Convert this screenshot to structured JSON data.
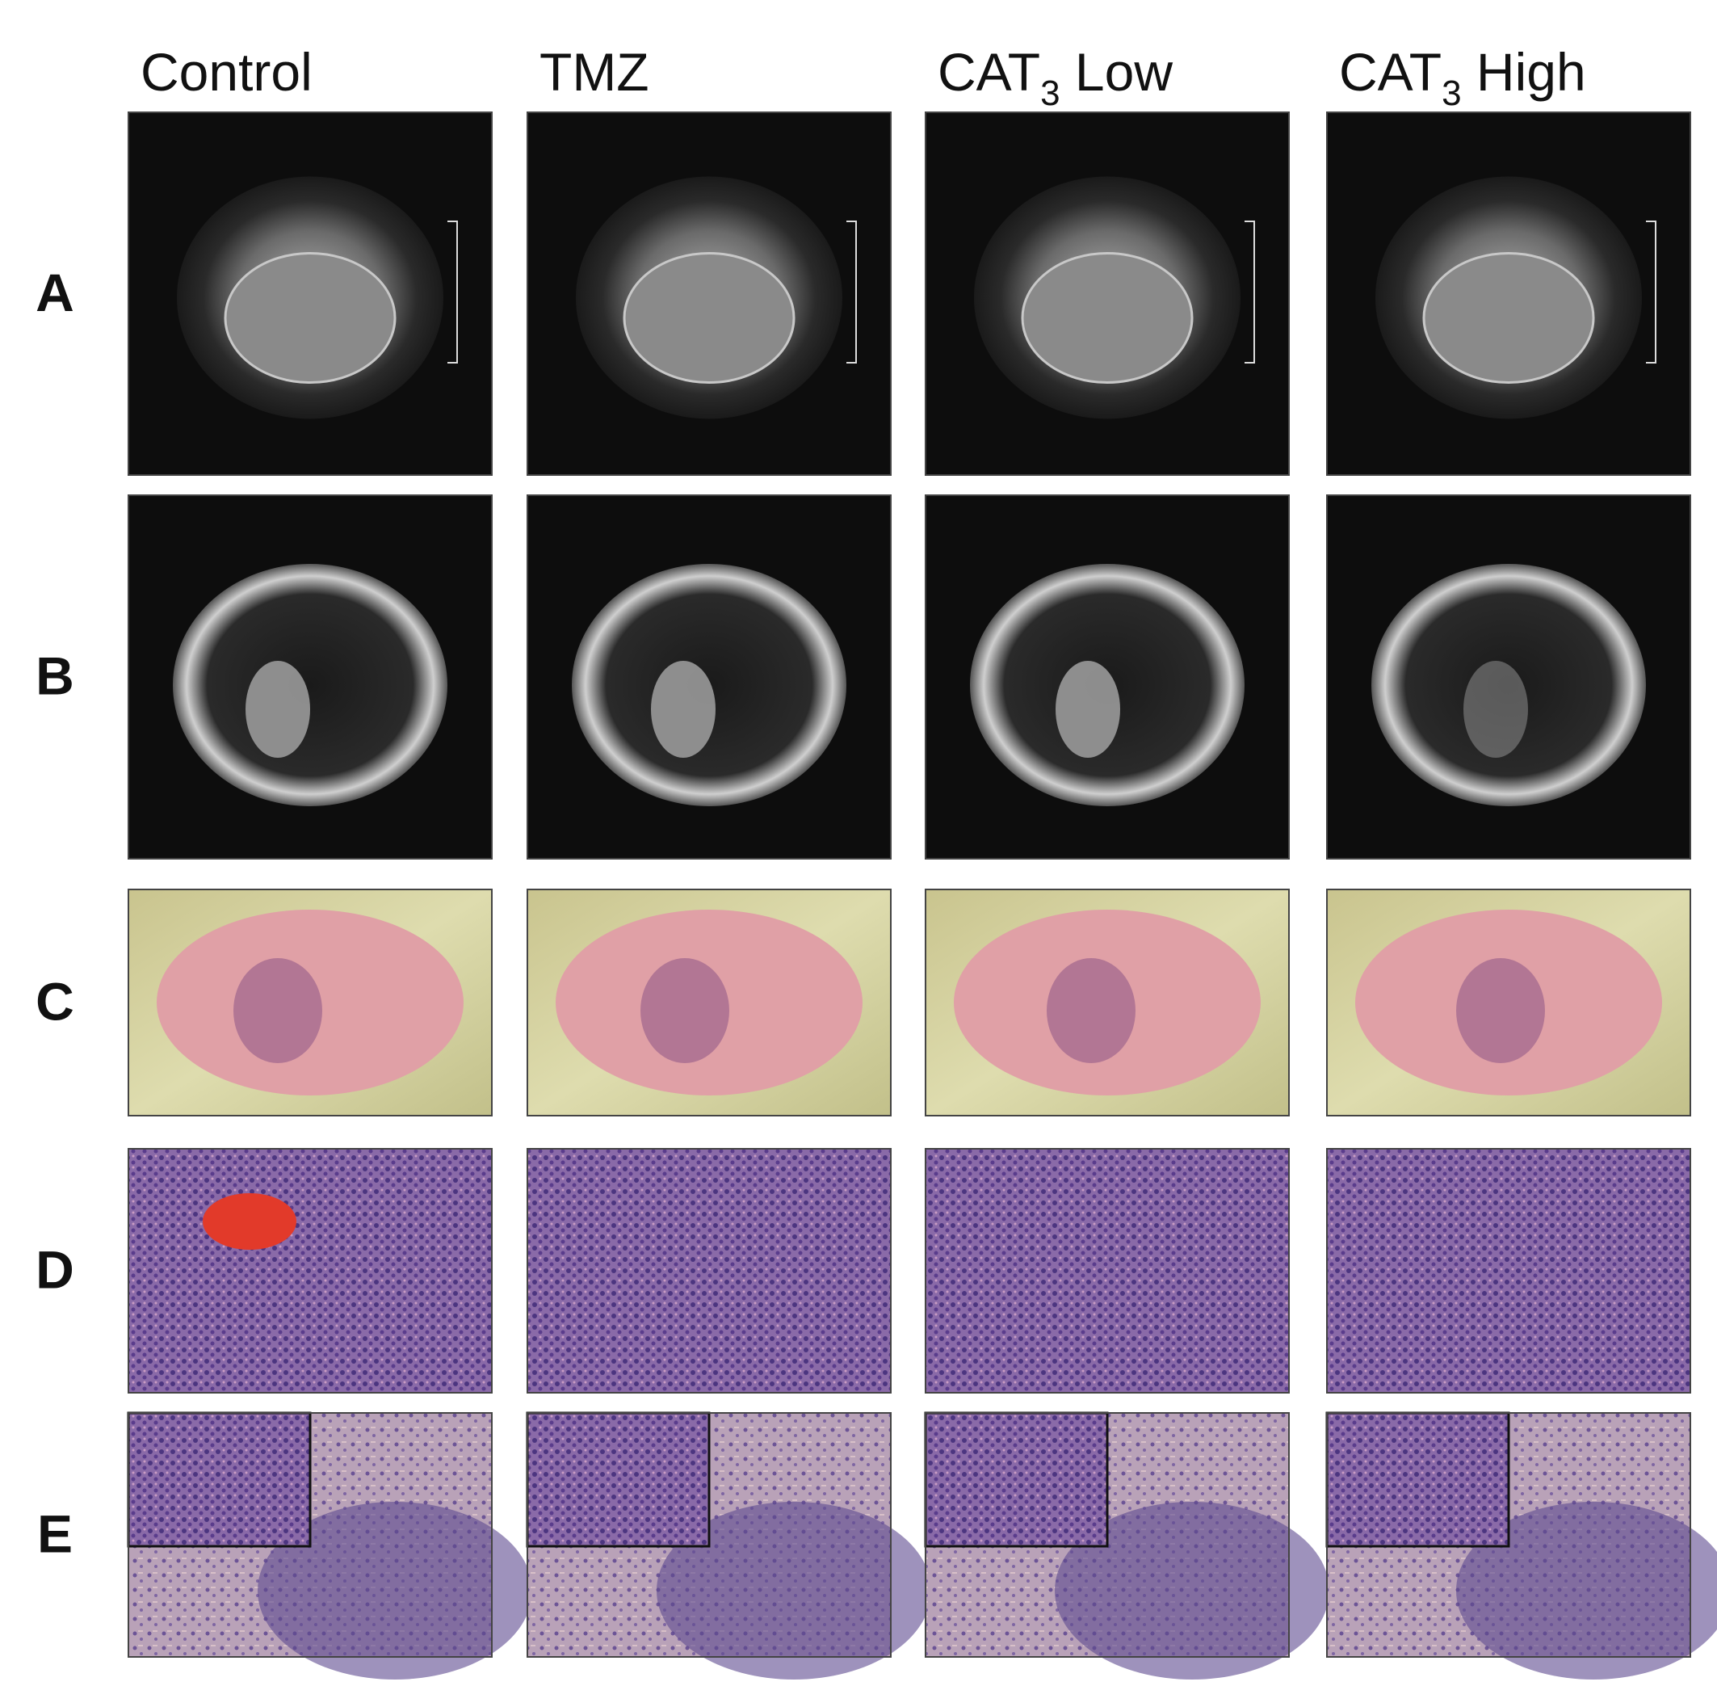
{
  "column_headers": [
    {
      "main": "Control"
    },
    {
      "main": "TMZ"
    },
    {
      "main": "CAT",
      "subscript": "3",
      "suffix": " Low"
    },
    {
      "main": "CAT",
      "subscript": "3",
      "suffix": " High"
    }
  ],
  "row_labels": [
    "A",
    "B",
    "C",
    "D",
    "E"
  ]
}
